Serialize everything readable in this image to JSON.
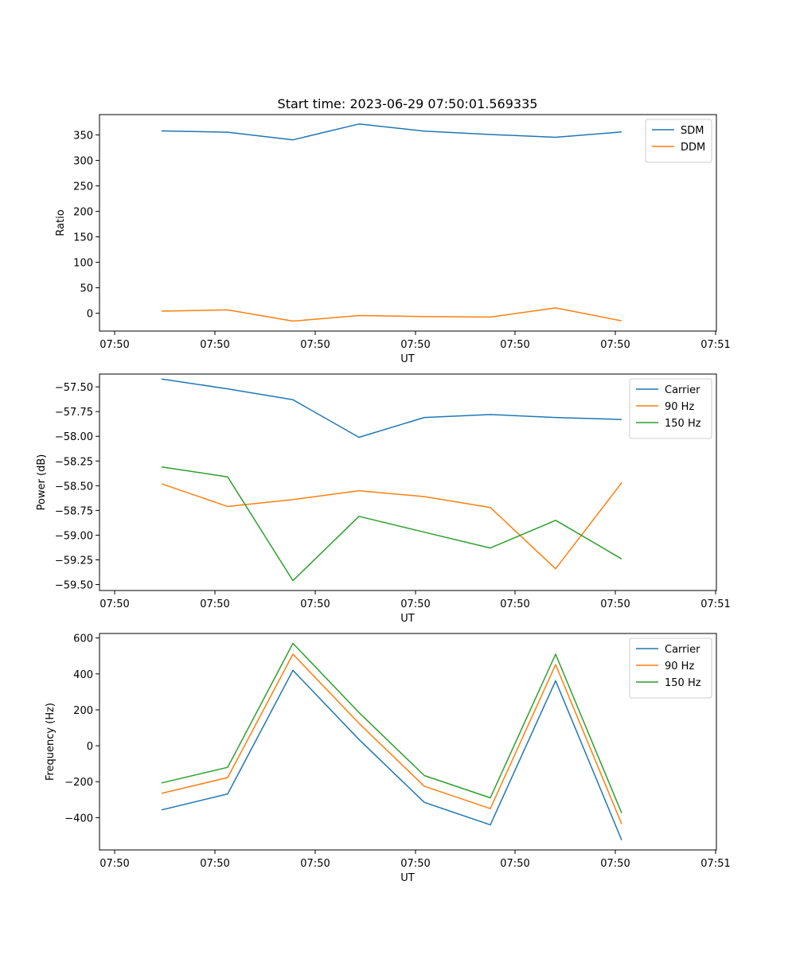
{
  "title": "Start time: 2023-06-29 07:50:01.569335",
  "chart_data": [
    {
      "type": "line",
      "xlabel": "UT",
      "ylabel": "Ratio",
      "x_tick_labels": [
        "07:50",
        "07:50",
        "07:50",
        "07:50",
        "07:50",
        "07:50",
        "07:51"
      ],
      "y_ticks": [
        0,
        50,
        100,
        150,
        200,
        250,
        300,
        350
      ],
      "y_tick_labels": [
        "0",
        "50",
        "100",
        "150",
        "200",
        "250",
        "300",
        "350"
      ],
      "ylim": [
        -35,
        390
      ],
      "legend_position": "upper right",
      "series": [
        {
          "name": "SDM",
          "color": "#1f77b4",
          "values": [
            358,
            355.5,
            340.5,
            371.5,
            357.5,
            351,
            345.5,
            356
          ]
        },
        {
          "name": "DDM",
          "color": "#ff7f0e",
          "values": [
            4,
            6.5,
            -15.5,
            -4.5,
            -6.5,
            -7.5,
            10.5,
            -15
          ]
        }
      ]
    },
    {
      "type": "line",
      "xlabel": "UT",
      "ylabel": "Power (dB)",
      "x_tick_labels": [
        "07:50",
        "07:50",
        "07:50",
        "07:50",
        "07:50",
        "07:50",
        "07:51"
      ],
      "y_ticks": [
        -57.5,
        -57.75,
        -58.0,
        -58.25,
        -58.5,
        -58.75,
        -59.0,
        -59.25,
        -59.5
      ],
      "y_tick_labels": [
        "−57.50",
        "−57.75",
        "−58.00",
        "−58.25",
        "−58.50",
        "−58.75",
        "−59.00",
        "−59.25",
        "−59.50"
      ],
      "ylim": [
        -59.56,
        -57.37
      ],
      "legend_position": "upper right",
      "series": [
        {
          "name": "Carrier",
          "color": "#1f77b4",
          "values": [
            -57.42,
            -57.52,
            -57.63,
            -58.01,
            -57.81,
            -57.78,
            -57.81,
            -57.83
          ]
        },
        {
          "name": "90 Hz",
          "color": "#ff7f0e",
          "values": [
            -58.48,
            -58.71,
            -58.64,
            -58.55,
            -58.61,
            -58.72,
            -59.34,
            -58.47
          ]
        },
        {
          "name": "150 Hz",
          "color": "#2ca02c",
          "values": [
            -58.31,
            -58.41,
            -59.46,
            -58.81,
            -58.97,
            -59.13,
            -58.85,
            -59.24
          ]
        }
      ]
    },
    {
      "type": "line",
      "xlabel": "UT",
      "ylabel": "Frequency (Hz)",
      "x_tick_labels": [
        "07:50",
        "07:50",
        "07:50",
        "07:50",
        "07:50",
        "07:50",
        "07:51"
      ],
      "y_ticks": [
        -400,
        -200,
        0,
        200,
        400,
        600
      ],
      "y_tick_labels": [
        "−400",
        "−200",
        "0",
        "200",
        "400",
        "600"
      ],
      "ylim": [
        -580,
        625
      ],
      "legend_position": "upper right",
      "series": [
        {
          "name": "Carrier",
          "color": "#1f77b4",
          "values": [
            -357,
            -268,
            420,
            35,
            -315,
            -440,
            362,
            -525
          ]
        },
        {
          "name": "90 Hz",
          "color": "#ff7f0e",
          "values": [
            -265,
            -177,
            510,
            125,
            -225,
            -350,
            452,
            -435
          ]
        },
        {
          "name": "150 Hz",
          "color": "#2ca02c",
          "values": [
            -207,
            -120,
            570,
            185,
            -166,
            -290,
            510,
            -375
          ]
        }
      ]
    }
  ]
}
